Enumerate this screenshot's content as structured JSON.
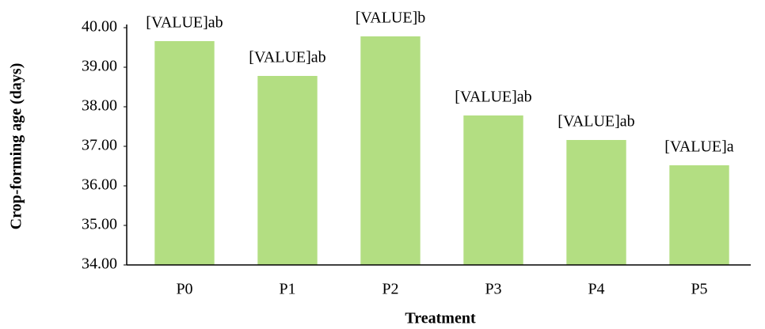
{
  "chart_data": {
    "type": "bar",
    "x_label": "Treatment",
    "y_label": "Crop-forming age (days)",
    "categories": [
      "P0",
      "P1",
      "P2",
      "P3",
      "P4",
      "P5"
    ],
    "values": [
      39.66,
      38.78,
      39.78,
      37.78,
      37.16,
      36.52
    ],
    "value_labels": [
      "[VALUE]ab",
      "[VALUE]ab",
      "[VALUE]b",
      "[VALUE]ab",
      "[VALUE]ab",
      "[VALUE]a"
    ],
    "color": "#b3de82",
    "ylim": [
      34,
      40
    ],
    "yticks": [
      {
        "value": 34,
        "label": "34.00"
      },
      {
        "value": 35,
        "label": "35.00"
      },
      {
        "value": 36,
        "label": "36.00"
      },
      {
        "value": 37,
        "label": "37.00"
      },
      {
        "value": 38,
        "label": "38.00"
      },
      {
        "value": 39,
        "label": "39.00"
      },
      {
        "value": 40,
        "label": "40.00"
      }
    ],
    "grid": false
  }
}
